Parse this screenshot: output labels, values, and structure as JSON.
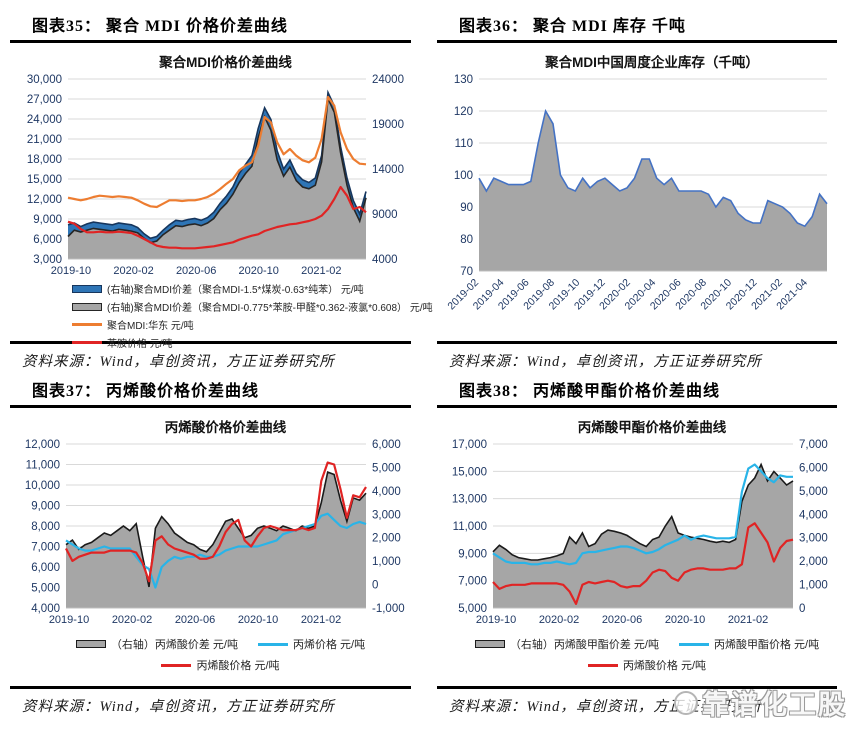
{
  "figures": [
    {
      "caption": "图表35：  聚合 MDI 价格价差曲线",
      "source": "资料来源：Wind，卓创资讯，方正证券研究所"
    },
    {
      "caption": "图表36：  聚合 MDI 库存  千吨",
      "source": "资料来源：Wind，卓创资讯，方正证券研究所"
    },
    {
      "caption": "图表37：  丙烯酸价格价差曲线",
      "source": "资料来源：Wind，卓创资讯，方正证券研究所"
    },
    {
      "caption": "图表38：  丙烯酸甲酯价格价差曲线",
      "source": "资料来源：Wind，卓创资讯，方正证券研究所"
    }
  ],
  "watermark": {
    "text": "靠谱化工股",
    "logo": "circle-logo"
  },
  "colors": {
    "axis_text": "#1f3864",
    "grid": "#d9d9d9",
    "blue_area": "#2e75b6",
    "gray_area": "#a6a6a6",
    "orange_line": "#ed7d31",
    "red_line": "#e02424",
    "cyan_line": "#29b4e8"
  },
  "chart_data": [
    {
      "type": "line",
      "title": "聚合MDI价格价差曲线",
      "x_ticks": {
        "labels": [
          "2019-10",
          "2020-02",
          "2020-06",
          "2020-10",
          "2021-02"
        ],
        "fracs": [
          0.01,
          0.22,
          0.43,
          0.64,
          0.85
        ],
        "rotated": false
      },
      "left_axis": {
        "min": 3000,
        "max": 30000,
        "tick_values": [
          3000,
          6000,
          9000,
          12000,
          15000,
          18000,
          21000,
          24000,
          27000,
          30000
        ],
        "tick_labels": [
          "3,000",
          "6,000",
          "9,000",
          "12,000",
          "15,000",
          "18,000",
          "21,000",
          "24,000",
          "27,000",
          "30,000"
        ]
      },
      "right_axis": {
        "min": 4000,
        "max": 24000,
        "tick_values": [
          4000,
          9000,
          14000,
          19000,
          24000
        ],
        "tick_labels": [
          "4000",
          "9000",
          "14000",
          "19000",
          "24000"
        ]
      },
      "grid": true,
      "legend_position": "bottom",
      "series": [
        {
          "name": "(右轴)聚合MDI价差（聚合MDI-1.5*煤炭-0.63*纯苯） 元/吨",
          "axis": "right",
          "kind": "area",
          "color": "#2e75b6",
          "stroke": "#17365d",
          "values": [
            7800,
            8000,
            7600,
            7900,
            8100,
            8000,
            7900,
            7800,
            8000,
            7900,
            7800,
            7500,
            6800,
            6300,
            6500,
            7200,
            7800,
            8300,
            8200,
            8400,
            8500,
            8300,
            8600,
            9200,
            10200,
            11000,
            12000,
            13500,
            14500,
            15500,
            18500,
            20800,
            19500,
            16000,
            14000,
            15000,
            13500,
            12800,
            12500,
            13000,
            15500,
            22500,
            21000,
            16500,
            13000,
            10500,
            9000,
            11500
          ]
        },
        {
          "name": "(右轴)聚合MDI价差（聚合MDI-0.775*苯胺-甲醛*0.362-液氯*0.608） 元/吨",
          "axis": "right",
          "kind": "area",
          "color": "#a6a6a6",
          "stroke": "#262626",
          "values": [
            6500,
            7200,
            7000,
            7200,
            7400,
            7300,
            7200,
            7100,
            7300,
            7200,
            7100,
            6900,
            6300,
            5800,
            6000,
            6700,
            7200,
            7700,
            7600,
            7800,
            7900,
            7700,
            8000,
            8500,
            9500,
            10200,
            11200,
            12500,
            13500,
            14300,
            17500,
            19800,
            18300,
            15000,
            13200,
            14200,
            12700,
            12000,
            11800,
            12200,
            14800,
            21800,
            20300,
            15800,
            12200,
            9700,
            8200,
            10800
          ]
        },
        {
          "name": "聚合MDI:华东 元/吨",
          "axis": "left",
          "kind": "line",
          "color": "#ed7d31",
          "values": [
            12200,
            12000,
            11800,
            12000,
            12300,
            12500,
            12400,
            12300,
            12400,
            12300,
            12200,
            11800,
            11300,
            10900,
            10800,
            11300,
            11800,
            11800,
            11700,
            11800,
            11800,
            12000,
            12300,
            12800,
            13500,
            14300,
            15000,
            16300,
            17000,
            17500,
            20000,
            24300,
            23500,
            20500,
            18700,
            19500,
            18500,
            17800,
            17500,
            18200,
            21000,
            27300,
            26000,
            22000,
            19500,
            18000,
            17300,
            17200
          ]
        },
        {
          "name": "苯胺价格 元/吨",
          "axis": "left",
          "kind": "line",
          "color": "#e02424",
          "values": [
            8600,
            8300,
            7500,
            7000,
            7000,
            7100,
            7000,
            7000,
            7100,
            7000,
            6900,
            6500,
            6000,
            5500,
            5000,
            4800,
            4700,
            4700,
            4600,
            4600,
            4600,
            4700,
            4800,
            4900,
            5100,
            5300,
            5500,
            5900,
            6200,
            6500,
            6700,
            7200,
            7500,
            7800,
            8000,
            8200,
            8300,
            8500,
            8700,
            9000,
            9500,
            10500,
            12000,
            13800,
            12500,
            10500,
            10800,
            10000
          ]
        }
      ]
    },
    {
      "type": "area",
      "title": "聚合MDI中国周度企业库存（千吨）",
      "x_ticks": {
        "labels": [
          "2019-02",
          "2019-04",
          "2019-06",
          "2019-08",
          "2019-10",
          "2019-12",
          "2020-02",
          "2020-04",
          "2020-06",
          "2020-08",
          "2020-10",
          "2020-12",
          "2021-02",
          "2021-04"
        ],
        "fracs": [
          0,
          0.073,
          0.145,
          0.218,
          0.291,
          0.364,
          0.436,
          0.509,
          0.582,
          0.655,
          0.727,
          0.8,
          0.873,
          0.945
        ],
        "rotated": true
      },
      "left_axis": {
        "min": 70,
        "max": 130,
        "tick_values": [
          70,
          80,
          90,
          100,
          110,
          120,
          130
        ],
        "tick_labels": [
          "70",
          "80",
          "90",
          "100",
          "110",
          "120",
          "130"
        ]
      },
      "right_axis": null,
      "grid": true,
      "legend_position": "none",
      "series": [
        {
          "name": "聚合MDI中国周度企业库存",
          "axis": "left",
          "kind": "area",
          "color": "#a6a6a6",
          "stroke": "#4472c4",
          "values": [
            99,
            95,
            99,
            98,
            97,
            97,
            97,
            98,
            110,
            120,
            116,
            100,
            96,
            95,
            99,
            96,
            98,
            99,
            97,
            95,
            96,
            99,
            105,
            105,
            99,
            97,
            99,
            95,
            95,
            95,
            95,
            94,
            90,
            93,
            92,
            88,
            86,
            85,
            85,
            92,
            91,
            90,
            88,
            85,
            84,
            87,
            94,
            91
          ]
        }
      ]
    },
    {
      "type": "line",
      "title": "丙烯酸价格价差曲线",
      "x_ticks": {
        "labels": [
          "2019-10",
          "2020-02",
          "2020-06",
          "2020-10",
          "2021-02"
        ],
        "fracs": [
          0.01,
          0.22,
          0.43,
          0.64,
          0.85
        ],
        "rotated": false
      },
      "left_axis": {
        "min": 4000,
        "max": 12000,
        "tick_values": [
          4000,
          5000,
          6000,
          7000,
          8000,
          9000,
          10000,
          11000,
          12000
        ],
        "tick_labels": [
          "4,000",
          "5,000",
          "6,000",
          "7,000",
          "8,000",
          "9,000",
          "10,000",
          "11,000",
          "12,000"
        ]
      },
      "right_axis": {
        "min": -1000,
        "max": 6000,
        "tick_values": [
          -1000,
          0,
          1000,
          2000,
          3000,
          4000,
          5000,
          6000
        ],
        "tick_labels": [
          "-1,000",
          "0",
          "1,000",
          "2,000",
          "3,000",
          "4,000",
          "5,000",
          "6,000"
        ]
      },
      "grid": true,
      "legend_position": "bottom",
      "series": [
        {
          "name": "（右轴）丙烯酸价差 元/吨",
          "axis": "right",
          "kind": "area",
          "color": "#a6a6a6",
          "stroke": "#1a1a1a",
          "values": [
            1700,
            1900,
            1500,
            1700,
            1800,
            2000,
            2200,
            2100,
            2300,
            2500,
            2300,
            2600,
            1200,
            -100,
            2400,
            2900,
            2600,
            2200,
            2000,
            1800,
            1700,
            1500,
            1400,
            1700,
            2200,
            2700,
            2800,
            2400,
            2000,
            2100,
            2400,
            2500,
            2400,
            2300,
            2500,
            2400,
            2300,
            2500,
            2400,
            2500,
            3500,
            4800,
            4700,
            3600,
            2700,
            3700,
            3600,
            3900
          ]
        },
        {
          "name": "丙烯价格 元/吨",
          "axis": "left",
          "kind": "line",
          "color": "#29b4e8",
          "values": [
            7300,
            7100,
            6900,
            6800,
            6800,
            6900,
            7000,
            6900,
            6900,
            6900,
            6900,
            6500,
            6100,
            5900,
            5000,
            6000,
            6300,
            6500,
            6400,
            6500,
            6500,
            6600,
            6500,
            6500,
            6600,
            6800,
            6900,
            7000,
            7000,
            7000,
            7000,
            7100,
            7200,
            7300,
            7600,
            7700,
            7800,
            7900,
            8000,
            8100,
            8500,
            8600,
            8300,
            8000,
            7900,
            8100,
            8200,
            8100
          ]
        },
        {
          "name": "丙烯酸价格 元/吨",
          "axis": "left",
          "kind": "line",
          "color": "#e02424",
          "values": [
            6900,
            6300,
            6500,
            6600,
            6700,
            6700,
            6700,
            6800,
            6800,
            6800,
            6800,
            6700,
            6200,
            5300,
            7300,
            7500,
            7100,
            6900,
            6800,
            6700,
            6600,
            6400,
            6400,
            6500,
            7000,
            7700,
            8100,
            8300,
            7300,
            7000,
            7500,
            7900,
            8000,
            7900,
            7800,
            7800,
            7800,
            7900,
            7800,
            7900,
            10200,
            11100,
            11000,
            9800,
            8400,
            9500,
            9400,
            9900
          ]
        }
      ]
    },
    {
      "type": "line",
      "title": "丙烯酸甲酯价格价差曲线",
      "x_ticks": {
        "labels": [
          "2019-10",
          "2020-02",
          "2020-06",
          "2020-10",
          "2021-02"
        ],
        "fracs": [
          0.01,
          0.22,
          0.43,
          0.64,
          0.85
        ],
        "rotated": false
      },
      "left_axis": {
        "min": 5000,
        "max": 17000,
        "tick_values": [
          5000,
          7000,
          9000,
          11000,
          13000,
          15000,
          17000
        ],
        "tick_labels": [
          "5,000",
          "7,000",
          "9,000",
          "11,000",
          "13,000",
          "15,000",
          "17,000"
        ]
      },
      "right_axis": {
        "min": 0,
        "max": 7000,
        "tick_values": [
          0,
          1000,
          2000,
          3000,
          4000,
          5000,
          6000,
          7000
        ],
        "tick_labels": [
          "0",
          "1,000",
          "2,000",
          "3,000",
          "4,000",
          "5,000",
          "6,000",
          "7,000"
        ]
      },
      "grid": true,
      "legend_position": "bottom",
      "series": [
        {
          "name": "（右轴）丙烯酸甲酯价差 元/吨",
          "axis": "right",
          "kind": "area",
          "color": "#a6a6a6",
          "stroke": "#1a1a1a",
          "values": [
            2400,
            2675,
            2500,
            2275,
            2150,
            2100,
            2050,
            2050,
            2100,
            2150,
            2225,
            2325,
            3025,
            2750,
            3200,
            2625,
            2750,
            3150,
            3325,
            3275,
            3200,
            3100,
            2925,
            2750,
            2625,
            2925,
            3025,
            3500,
            3900,
            3200,
            3100,
            3025,
            2975,
            2925,
            2850,
            2800,
            2850,
            2800,
            2925,
            4550,
            5250,
            5550,
            6125,
            5425,
            5825,
            5550,
            5250,
            5425
          ]
        },
        {
          "name": "丙烯酸甲酯价格 元/吨",
          "axis": "left",
          "kind": "line",
          "color": "#29b4e8",
          "values": [
            9000,
            8700,
            8400,
            8300,
            8300,
            8300,
            8200,
            8200,
            8300,
            8300,
            8400,
            8300,
            8200,
            8300,
            9000,
            9100,
            9100,
            9200,
            9300,
            9400,
            9500,
            9500,
            9400,
            9200,
            9000,
            9100,
            9300,
            9600,
            9800,
            10000,
            10300,
            10000,
            10200,
            10300,
            10200,
            10100,
            10100,
            10100,
            10200,
            13500,
            15200,
            15500,
            15000,
            14500,
            14200,
            14700,
            14600,
            14600
          ]
        },
        {
          "name": "丙烯酸价格 元/吨",
          "axis": "left",
          "kind": "line",
          "color": "#e02424",
          "values": [
            6900,
            6400,
            6600,
            6700,
            6700,
            6700,
            6800,
            6800,
            6800,
            6800,
            6800,
            6700,
            6200,
            5300,
            6700,
            6900,
            6800,
            6900,
            7000,
            6900,
            6600,
            6500,
            6600,
            6600,
            7000,
            7600,
            7800,
            7700,
            7200,
            7000,
            7600,
            7800,
            7900,
            7900,
            7800,
            7800,
            7800,
            7900,
            7900,
            8200,
            10900,
            11200,
            10500,
            9800,
            8400,
            9400,
            9900,
            10000
          ]
        }
      ]
    }
  ]
}
